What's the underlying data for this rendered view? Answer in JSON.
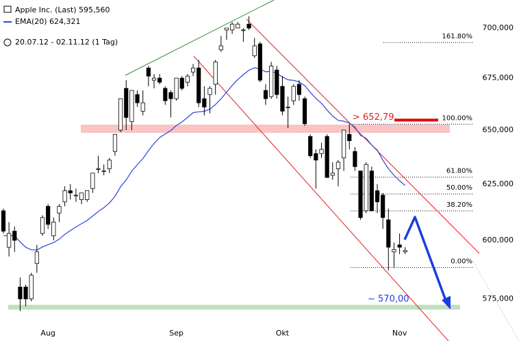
{
  "chart_data": {
    "type": "candlestick",
    "legend": [
      "Apple Inc. (Last) 595,560",
      "EMA(20) 624,321"
    ],
    "subtitle": "20.07.12 - 02.11.12 (1 Tag)",
    "log_scale": true,
    "ylim": [
      557.7,
      714.4
    ],
    "yticks": [
      {
        "value": 575,
        "label": "575,000"
      },
      {
        "value": 600,
        "label": "600,000"
      },
      {
        "value": 625,
        "label": "625,000"
      },
      {
        "value": 650,
        "label": "650,000"
      },
      {
        "value": 675,
        "label": "675,000"
      },
      {
        "value": 700,
        "label": "700,000"
      }
    ],
    "xlim": [
      -0.61,
      92.4
    ],
    "xticks": [
      {
        "value": 8,
        "label": "Aug"
      },
      {
        "value": 31,
        "label": "Sep"
      },
      {
        "value": 50,
        "label": "Okt"
      },
      {
        "value": 71,
        "label": "Nov"
      }
    ],
    "up_color": "#ffffff",
    "down_color": "#000000",
    "ohlc": [
      [
        613,
        614,
        603,
        604
      ],
      [
        597,
        608,
        593,
        603
      ],
      [
        604,
        606,
        595,
        600
      ],
      [
        580,
        584,
        570,
        575
      ],
      [
        580,
        581,
        572,
        575
      ],
      [
        575,
        586,
        574,
        585
      ],
      [
        590,
        598,
        586,
        595
      ],
      [
        603,
        611,
        602,
        610
      ],
      [
        615,
        616,
        605,
        607
      ],
      [
        602,
        610,
        600,
        608
      ],
      [
        612,
        616,
        608,
        615
      ],
      [
        617,
        624,
        615,
        622
      ],
      [
        622,
        625,
        618,
        621
      ],
      [
        620,
        623,
        617,
        620
      ],
      [
        618,
        621,
        616,
        621
      ],
      [
        618,
        622,
        617,
        622
      ],
      [
        623,
        630,
        621,
        630
      ],
      [
        632,
        638,
        630,
        632
      ],
      [
        631,
        634,
        629,
        631
      ],
      [
        632,
        637,
        630,
        636
      ],
      [
        640,
        648,
        638,
        648
      ],
      [
        650,
        665,
        649,
        665
      ],
      [
        670,
        674,
        650,
        656
      ],
      [
        654,
        669,
        650,
        669
      ],
      [
        667,
        669,
        661,
        663
      ],
      [
        659,
        669,
        657,
        663
      ],
      [
        680,
        681,
        671,
        676
      ],
      [
        674,
        677,
        670,
        675
      ],
      [
        675,
        677,
        672,
        673
      ],
      [
        670,
        671,
        662,
        664
      ],
      [
        668,
        669,
        656,
        665
      ],
      [
        665,
        675,
        664,
        675
      ],
      [
        675,
        676,
        669,
        670
      ],
      [
        673,
        677,
        671,
        676
      ],
      [
        678,
        682,
        676,
        680
      ],
      [
        680,
        684,
        661,
        663
      ],
      [
        665,
        671,
        657,
        661
      ],
      [
        667,
        671,
        658,
        670
      ],
      [
        672,
        684,
        667,
        683
      ],
      [
        689,
        696,
        688,
        691
      ],
      [
        699,
        700,
        694,
        700
      ],
      [
        699,
        703,
        697,
        702
      ],
      [
        700,
        703,
        700,
        702
      ],
      [
        699,
        700,
        693,
        699
      ],
      [
        702,
        706,
        699,
        700
      ],
      [
        686,
        695,
        685,
        691
      ],
      [
        692,
        693,
        673,
        674
      ],
      [
        669,
        672,
        662,
        665
      ],
      [
        666,
        683,
        665,
        681
      ],
      [
        679,
        681,
        665,
        667
      ],
      [
        671,
        676,
        657,
        659
      ],
      [
        661,
        666,
        651,
        661
      ],
      [
        664,
        672,
        662,
        671
      ],
      [
        672,
        674,
        664,
        667
      ],
      [
        665,
        666,
        652,
        653
      ],
      [
        647,
        648,
        637,
        638
      ],
      [
        639,
        641,
        623,
        636
      ],
      [
        639,
        644,
        637,
        641
      ],
      [
        647,
        648,
        628,
        628
      ],
      [
        629,
        635,
        627,
        630
      ],
      [
        632,
        636,
        624,
        635
      ],
      [
        637,
        650,
        631,
        650
      ],
      [
        648,
        653,
        641,
        645
      ],
      [
        640,
        642,
        631,
        633
      ],
      [
        631,
        631,
        609,
        610
      ],
      [
        613,
        635,
        612,
        634
      ],
      [
        631,
        633,
        613,
        613
      ],
      [
        622,
        625,
        612,
        617
      ],
      [
        620,
        621,
        605,
        610
      ],
      [
        609,
        614,
        587,
        597
      ],
      [
        595,
        599,
        588,
        596
      ],
      [
        598,
        603,
        594,
        597
      ],
      [
        595,
        597,
        594,
        595.56
      ]
    ],
    "series": [
      {
        "name": "EMA(20)",
        "color": "#2b44d8",
        "values": [
          602,
          602.1,
          601.9,
          599.3,
          597,
          595.9,
          595.8,
          597.1,
          598.1,
          599,
          600.5,
          602.6,
          604.3,
          605.8,
          607.3,
          608.7,
          610.7,
          612.7,
          614.4,
          616.5,
          619.5,
          623.8,
          626.9,
          630.9,
          633.9,
          636.7,
          640.4,
          643.7,
          646.5,
          648.2,
          649.8,
          652.2,
          653.9,
          656,
          658.3,
          658.7,
          658.9,
          660,
          662.2,
          664.9,
          668.2,
          671.4,
          674.3,
          676.7,
          678.9,
          680.1,
          679.5,
          678.1,
          678.4,
          677.3,
          675.6,
          674.2,
          673.9,
          673.2,
          671.3,
          668.1,
          665.1,
          662.8,
          659.5,
          656.7,
          654.6,
          654.2,
          653.3,
          651.4,
          647.5,
          646.2,
          643,
          640.6,
          636,
          632,
          629,
          626.5,
          624.321
        ]
      }
    ],
    "fib_levels": [
      {
        "label": "161.80%",
        "value": 692.65
      },
      {
        "label": "100.00%",
        "value": 652.79
      },
      {
        "label": "61.80%",
        "value": 628.16
      },
      {
        "label": "50.00%",
        "value": 620.55
      },
      {
        "label": "38.20%",
        "value": 612.94
      },
      {
        "label": "0.00%",
        "value": 588.3
      }
    ],
    "resistance": {
      "label": "> 652,79",
      "value": 652.79,
      "zone": [
        648.7,
        652.6
      ]
    },
    "target": {
      "label": "~ 570,00",
      "value": 570
    }
  }
}
